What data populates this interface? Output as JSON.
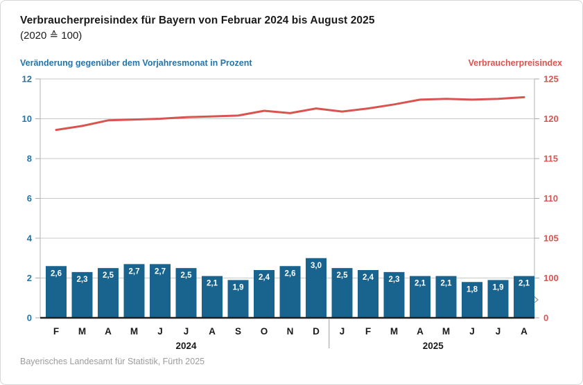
{
  "header": {
    "title": "Verbraucherpreisindex für Bayern von Februar 2024 bis August 2025",
    "subtitle": "(2020 ≙ 100)",
    "left_axis_label": "Veränderung gegenüber dem Vorjahresmonat in Prozent",
    "right_axis_label": "Verbraucherpreisindex"
  },
  "footer": {
    "source": "Bayerisches Landesamt für Statistik, Fürth 2025"
  },
  "colors": {
    "bar": "#19648f",
    "bar_label": "#ffffff",
    "line": "#d9534f",
    "left_axis_text": "#2374ab",
    "right_axis_text": "#d9534f",
    "grid": "#c8c8c8",
    "axis_frame": "#b3b3b3",
    "tick": "#a8a8a8",
    "baseline": "#1f1f1f",
    "month_text": "#1a1a1a",
    "year_text": "#1a1a1a",
    "divider": "#9b9b9b",
    "break_glyph": "#9b9b9b"
  },
  "chart_data": {
    "type": "bar+line",
    "title": "Verbraucherpreisindex für Bayern von Februar 2024 bis August 2025",
    "subtitle": "(2020 ≙ 100)",
    "categories": [
      "F",
      "M",
      "A",
      "M",
      "J",
      "J",
      "A",
      "S",
      "O",
      "N",
      "D",
      "J",
      "F",
      "M",
      "A",
      "M",
      "J",
      "J",
      "A"
    ],
    "year_groups": [
      {
        "label": "2024",
        "from": 0,
        "to": 10
      },
      {
        "label": "2025",
        "from": 11,
        "to": 18
      }
    ],
    "bar_series": {
      "name": "Veränderung gegenüber dem Vorjahresmonat in Prozent",
      "values": [
        2.6,
        2.3,
        2.5,
        2.7,
        2.7,
        2.5,
        2.1,
        1.9,
        2.4,
        2.6,
        3.0,
        2.5,
        2.4,
        2.3,
        2.1,
        2.1,
        1.8,
        1.9,
        2.1
      ],
      "labels": [
        "2,6",
        "2,3",
        "2,5",
        "2,7",
        "2,7",
        "2,5",
        "2,1",
        "1,9",
        "2,4",
        "2,6",
        "3,0",
        "2,5",
        "2,4",
        "2,3",
        "2,1",
        "2,1",
        "1,8",
        "1,9",
        "2,1"
      ]
    },
    "line_series": {
      "name": "Verbraucherpreisindex",
      "values": [
        118.6,
        119.1,
        119.8,
        119.9,
        120.0,
        120.2,
        120.3,
        120.4,
        121.0,
        120.7,
        121.3,
        120.9,
        121.3,
        121.8,
        122.4,
        122.5,
        122.4,
        122.5,
        122.7
      ]
    },
    "left_axis": {
      "min": 0,
      "max": 12,
      "ticks_top_to_bottom": [
        "12",
        "10",
        "8",
        "6",
        "4",
        "2",
        "0"
      ]
    },
    "right_axis": {
      "labels_top_to_bottom": [
        "125",
        "120",
        "115",
        "110",
        "105",
        "100",
        "0"
      ],
      "axis_break": true,
      "value_at_top": 125,
      "value_per_gridline": 5
    },
    "grid": true,
    "legend_position": "none"
  }
}
